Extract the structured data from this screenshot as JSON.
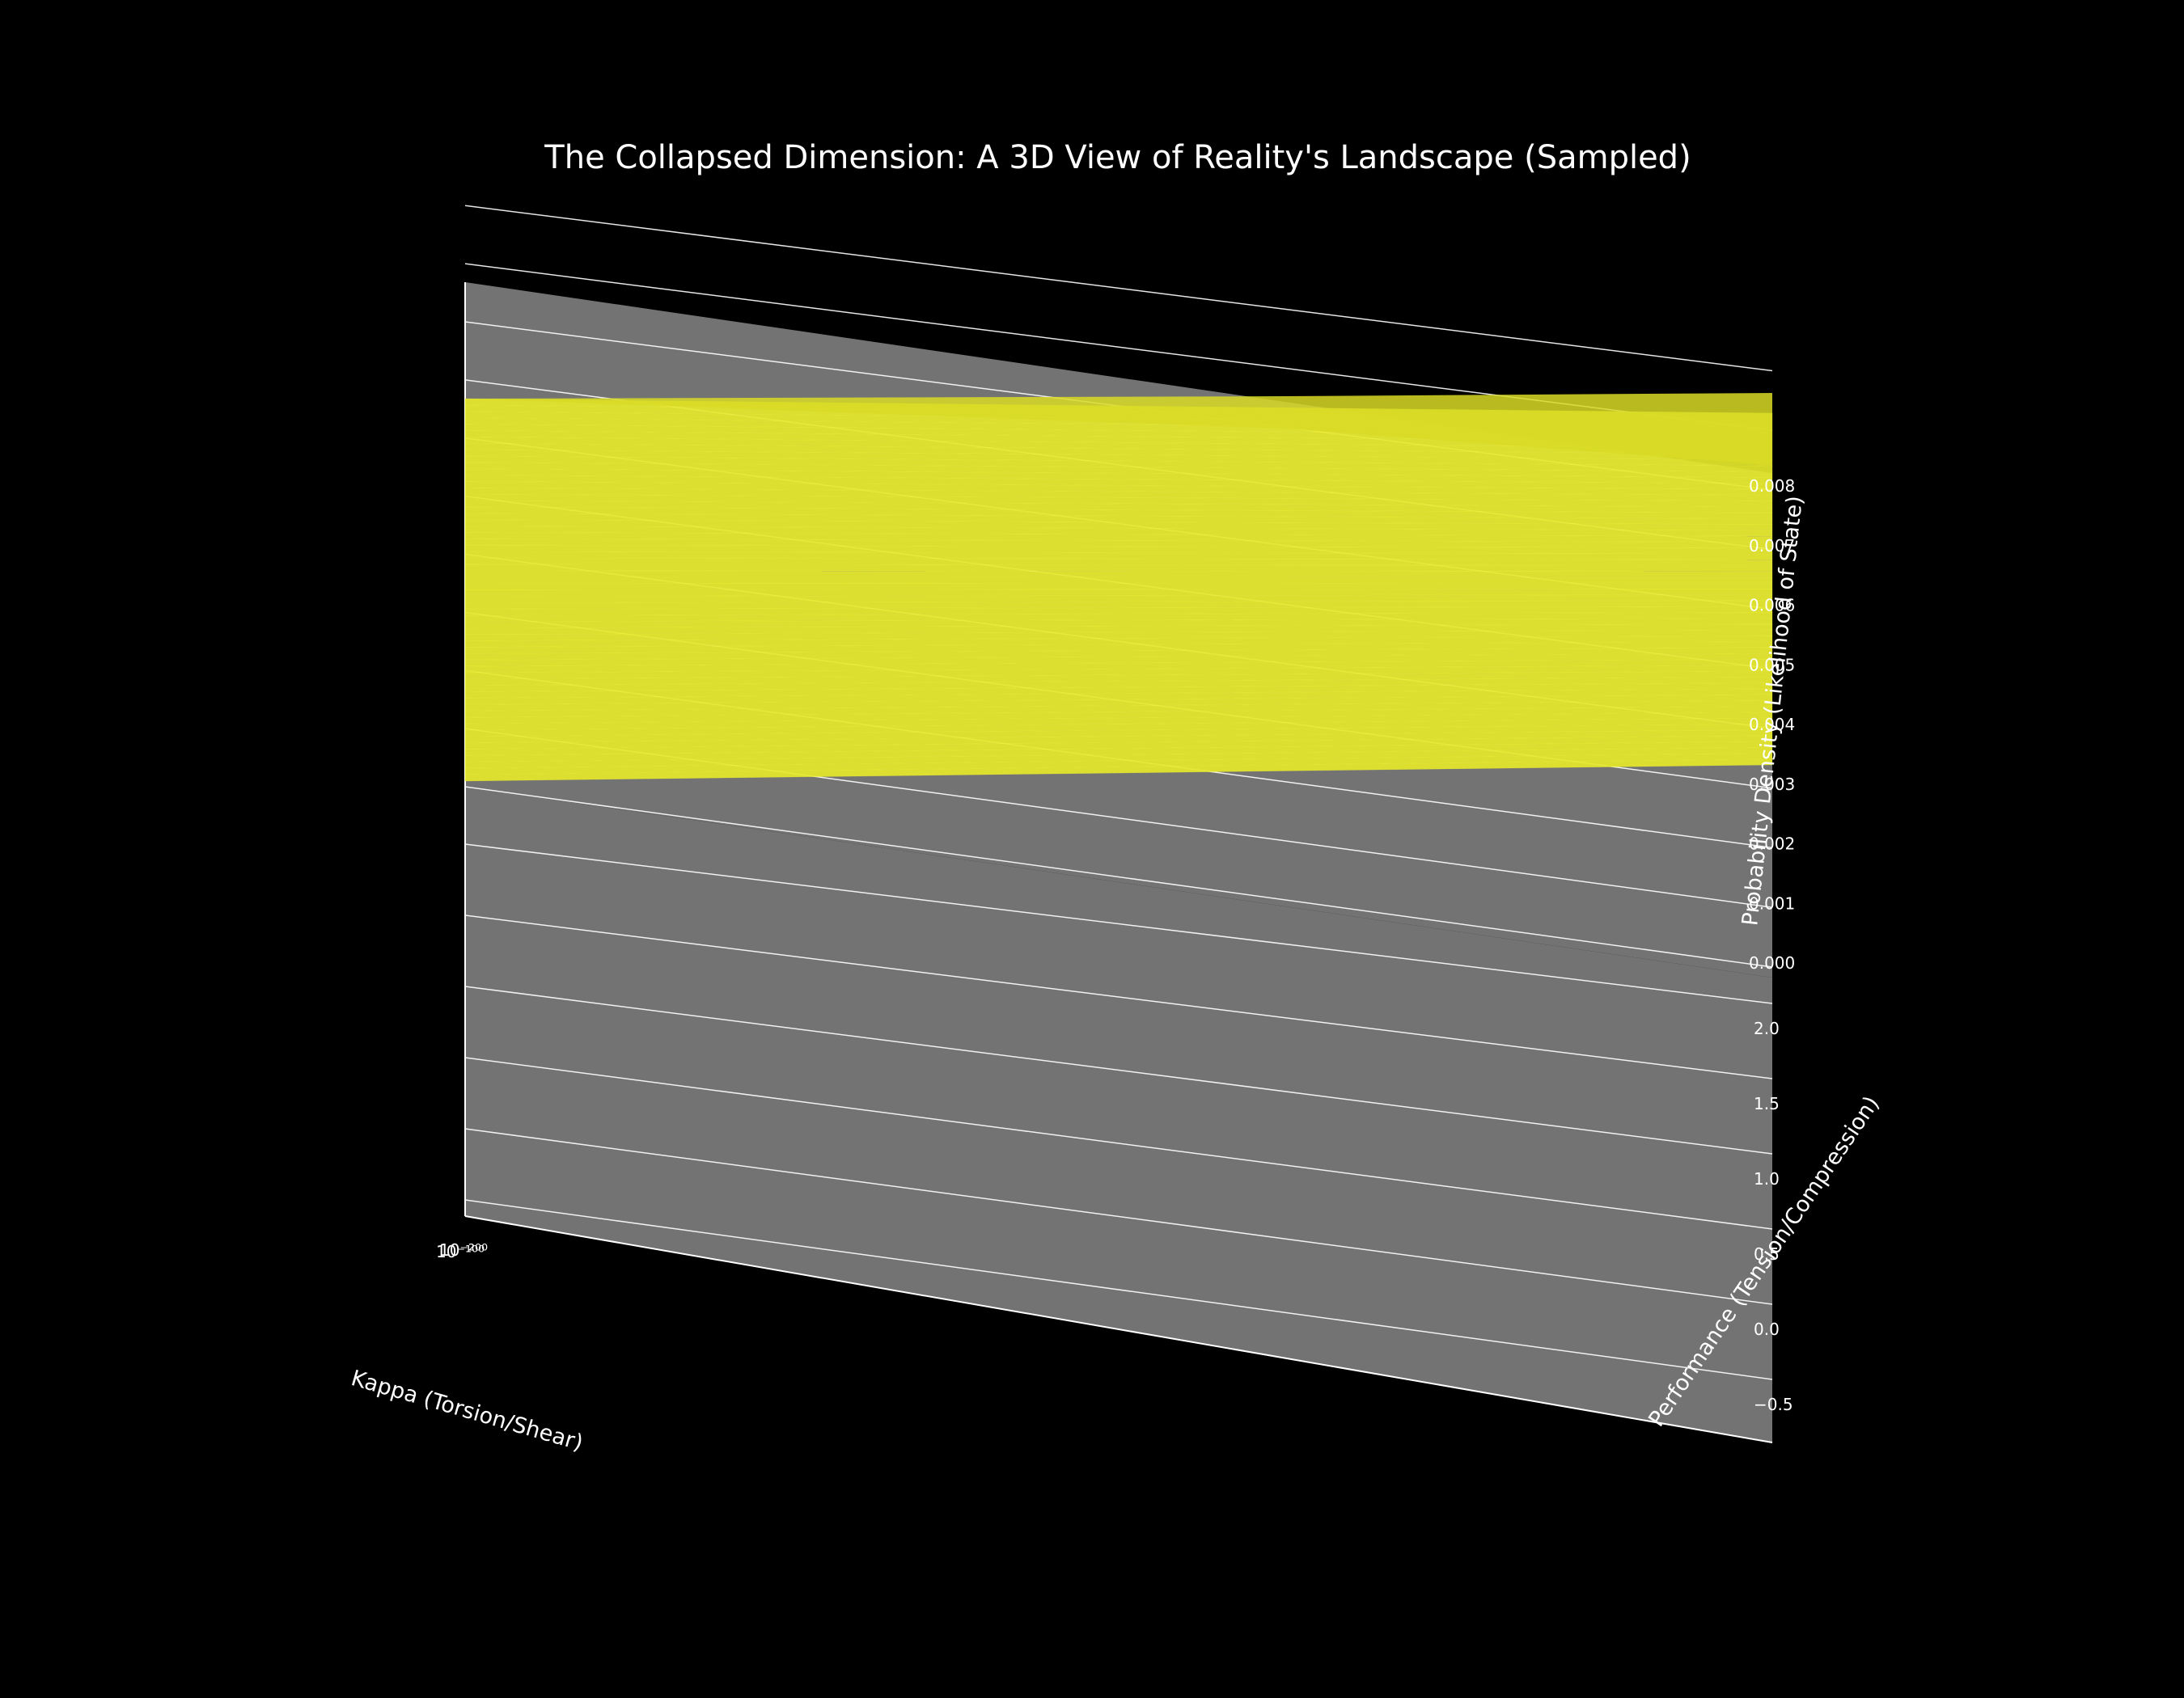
{
  "chart_data": {
    "type": "surface3d",
    "title": "The Collapsed Dimension: A 3D View of Reality's Landscape (Sampled)",
    "xlabel": "Kappa (Torsion/Shear)",
    "ylabel": "Performance (Tension/Compression)",
    "zlabel": "Probability Density (Likelihood of State)",
    "x_scale": "log",
    "x_ticks": [
      "10⁻¹⁰⁰",
      "10⁻²⁰⁰"
    ],
    "y_ticks": [
      "−0.5",
      "0.0",
      "0.5",
      "1.0",
      "1.5",
      "2.0"
    ],
    "z_ticks": [
      "0.000",
      "0.001",
      "0.002",
      "0.003",
      "0.004",
      "0.005",
      "0.006",
      "0.007",
      "0.008"
    ],
    "ylim": [
      -0.5,
      2.0
    ],
    "zlim": [
      0.0,
      0.008
    ],
    "surface": {
      "color": "#e5e82a",
      "z_min": 0.0032,
      "z_max": 0.0091
    },
    "pane_color": "#737373",
    "background": "#000000",
    "grid": true
  }
}
